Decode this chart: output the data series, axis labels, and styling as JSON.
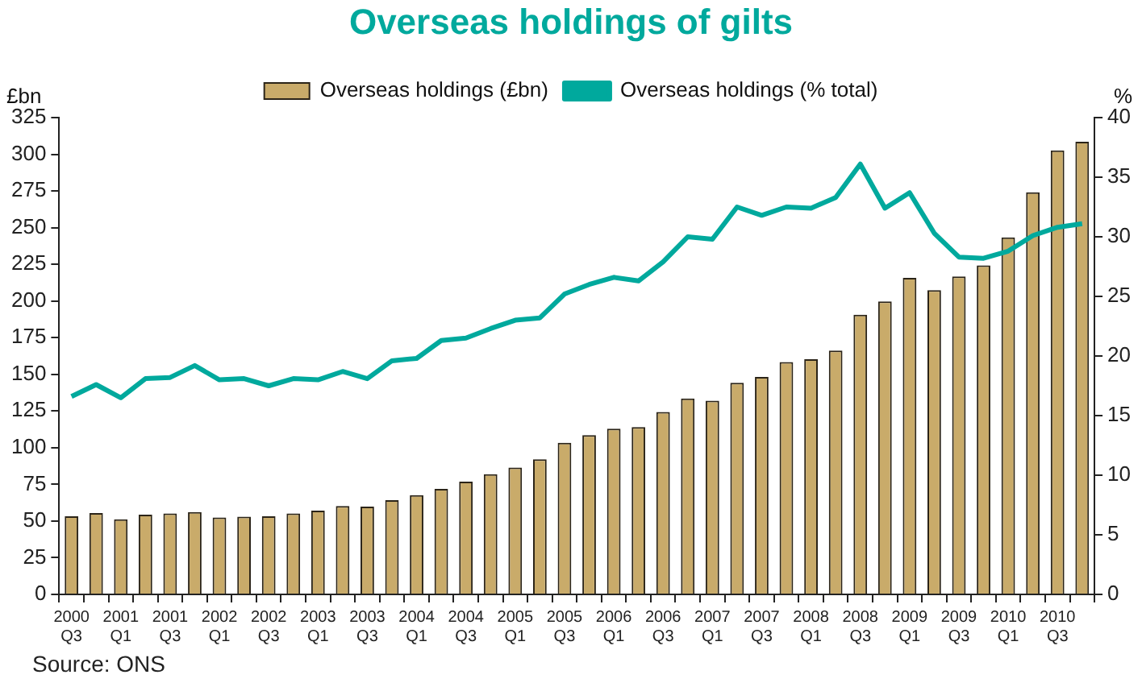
{
  "chart_data": {
    "type": "bar",
    "title": "Overseas holdings of gilts",
    "ylabel": "£bn",
    "y2label": "%",
    "categories": [
      "2000 Q3",
      null,
      "2001 Q1",
      null,
      "2001 Q3",
      null,
      "2002 Q1",
      null,
      "2002 Q3",
      null,
      "2003 Q1",
      null,
      "2003 Q3",
      null,
      "2004 Q1",
      null,
      "2004 Q3",
      null,
      "2005 Q1",
      null,
      "2005 Q3",
      null,
      "2006 Q1",
      null,
      "2006 Q3",
      null,
      "2007 Q1",
      null,
      "2007 Q3",
      null,
      "2008 Q1",
      null,
      "2008 Q3",
      null,
      "2009 Q1",
      null,
      "2009 Q3",
      null,
      "2010 Q1",
      null,
      "2010 Q3",
      null
    ],
    "series": [
      {
        "name": "Overseas holdings (£bn)",
        "color": "#c9ab6a",
        "values": [
          53.3,
          55.5,
          51.2,
          54.3,
          55.2,
          56.1,
          52.4,
          53.0,
          53.3,
          55.2,
          57.1,
          60.2,
          59.8,
          64.2,
          67.6,
          71.9,
          76.9,
          81.9,
          86.5,
          92.1,
          103.3,
          108.5,
          112.9,
          114.1,
          124.3,
          133.6,
          132.1,
          144.2,
          148.2,
          158.4,
          160.3,
          166.2,
          190.7,
          199.7,
          215.8,
          207.4,
          216.7,
          224.2,
          243.4,
          274.1,
          302.6,
          308.5
        ]
      },
      {
        "name": "Overseas holdings (% total)",
        "type": "line",
        "axis": "y2",
        "color": "#00a99d",
        "values": [
          16.6,
          17.6,
          16.5,
          18.1,
          18.2,
          19.2,
          18.0,
          18.1,
          17.5,
          18.1,
          18.0,
          18.7,
          18.1,
          19.6,
          19.8,
          21.3,
          21.5,
          22.3,
          23.0,
          23.2,
          25.2,
          26.0,
          26.6,
          26.3,
          27.9,
          30.0,
          29.8,
          32.5,
          31.8,
          32.5,
          32.4,
          33.3,
          36.1,
          32.4,
          33.7,
          30.3,
          28.3,
          28.2,
          28.8,
          30.1,
          30.8,
          31.1
        ]
      }
    ],
    "ylim": [
      0,
      325
    ],
    "yticks": [
      0,
      25,
      50,
      75,
      100,
      125,
      150,
      175,
      200,
      225,
      250,
      275,
      300,
      325
    ],
    "y2lim": [
      0,
      40
    ],
    "y2ticks": [
      0,
      5,
      10,
      15,
      20,
      25,
      30,
      35,
      40
    ],
    "grid": false,
    "legend": "top",
    "marker": "none",
    "annotations": [
      "Source: ONS"
    ]
  }
}
